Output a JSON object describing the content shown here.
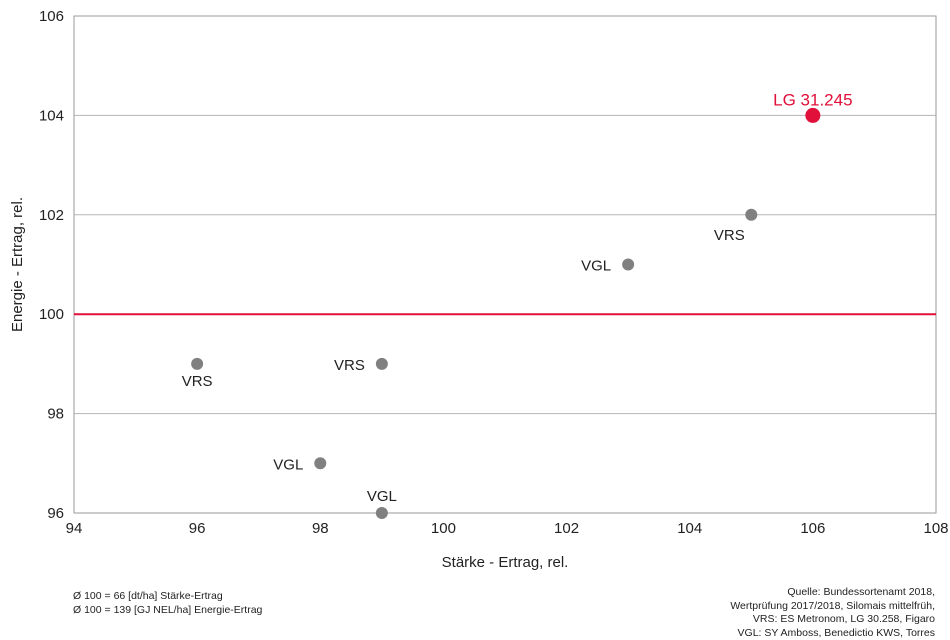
{
  "chart_data": {
    "type": "scatter",
    "xlabel": "Stärke - Ertrag, rel.",
    "ylabel": "Energie - Ertrag, rel.",
    "xlim": [
      94,
      108
    ],
    "ylim": [
      96,
      106
    ],
    "x_ticks": [
      94,
      96,
      98,
      100,
      102,
      104,
      106,
      108
    ],
    "y_ticks": [
      96,
      98,
      100,
      102,
      104,
      106
    ],
    "grid": "horizontal",
    "reference_line": {
      "y": 100,
      "color": "#e0103a"
    },
    "points": [
      {
        "x": 106,
        "y": 104,
        "label": "LG 31.245",
        "color": "#e0103a",
        "highlight": true,
        "label_pos": "above"
      },
      {
        "x": 105,
        "y": 102,
        "label": "VRS",
        "color": "#808080",
        "label_pos": "below-left"
      },
      {
        "x": 103,
        "y": 101,
        "label": "VGL",
        "color": "#808080",
        "label_pos": "left"
      },
      {
        "x": 96,
        "y": 99,
        "label": "VRS",
        "color": "#808080",
        "label_pos": "below"
      },
      {
        "x": 99,
        "y": 99,
        "label": "VRS",
        "color": "#808080",
        "label_pos": "left"
      },
      {
        "x": 98,
        "y": 97,
        "label": "VGL",
        "color": "#808080",
        "label_pos": "left"
      },
      {
        "x": 99,
        "y": 96,
        "label": "VGL",
        "color": "#808080",
        "label_pos": "above"
      }
    ]
  },
  "footnote_left": [
    "Ø 100 = 66 [dt/ha] Stärke-Ertrag",
    "Ø 100 = 139 [GJ NEL/ha] Energie-Ertrag"
  ],
  "footnote_right": [
    "Quelle: Bundessortenamt 2018,",
    "Wertprüfung 2017/2018, Silomais mittelfrüh,",
    "VRS: ES Metronom, LG 30.258, Figaro",
    "VGL: SY Amboss, Benedictio KWS, Torres"
  ]
}
